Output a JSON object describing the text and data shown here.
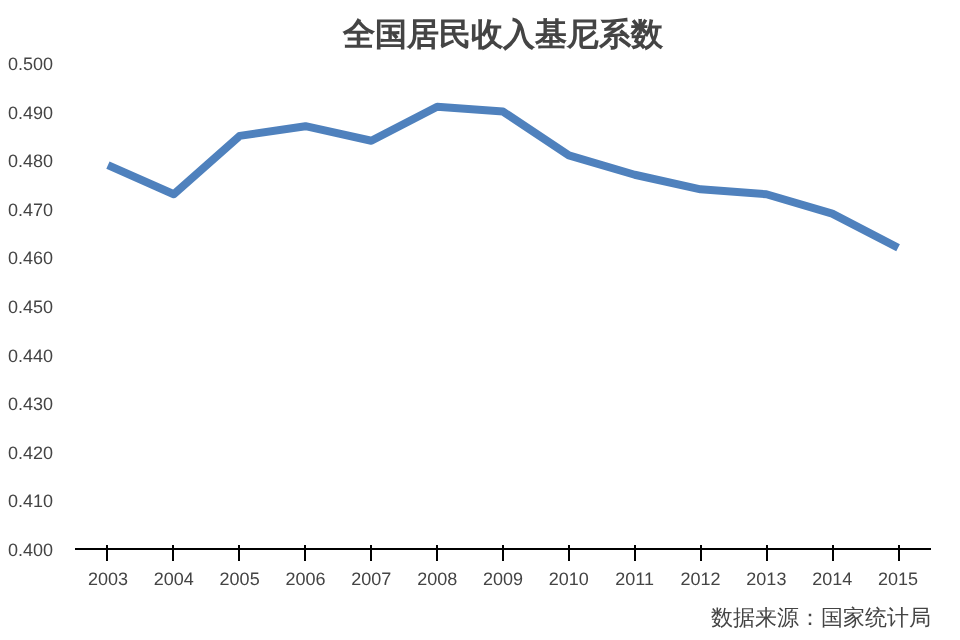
{
  "chart_data": {
    "type": "line",
    "title": "全国居民收入基尼系数",
    "categories": [
      "2003",
      "2004",
      "2005",
      "2006",
      "2007",
      "2008",
      "2009",
      "2010",
      "2011",
      "2012",
      "2013",
      "2014",
      "2015"
    ],
    "series": [
      {
        "color": "#4f81bd",
        "values": [
          0.479,
          0.473,
          0.485,
          0.487,
          0.484,
          0.491,
          0.49,
          0.481,
          0.477,
          0.474,
          0.473,
          0.469,
          0.462
        ]
      }
    ],
    "ylim": [
      0.4,
      0.5
    ],
    "yticks": [
      {
        "value": 0.4,
        "label": "0.400"
      },
      {
        "value": 0.41,
        "label": "0.410"
      },
      {
        "value": 0.42,
        "label": "0.420"
      },
      {
        "value": 0.43,
        "label": "0.430"
      },
      {
        "value": 0.44,
        "label": "0.440"
      },
      {
        "value": 0.45,
        "label": "0.450"
      },
      {
        "value": 0.46,
        "label": "0.460"
      },
      {
        "value": 0.47,
        "label": "0.470"
      },
      {
        "value": 0.48,
        "label": "0.480"
      },
      {
        "value": 0.49,
        "label": "0.490"
      },
      {
        "value": 0.5,
        "label": "0.500"
      }
    ],
    "grid": false,
    "annotations": [
      "数据来源：国家统计局"
    ]
  }
}
